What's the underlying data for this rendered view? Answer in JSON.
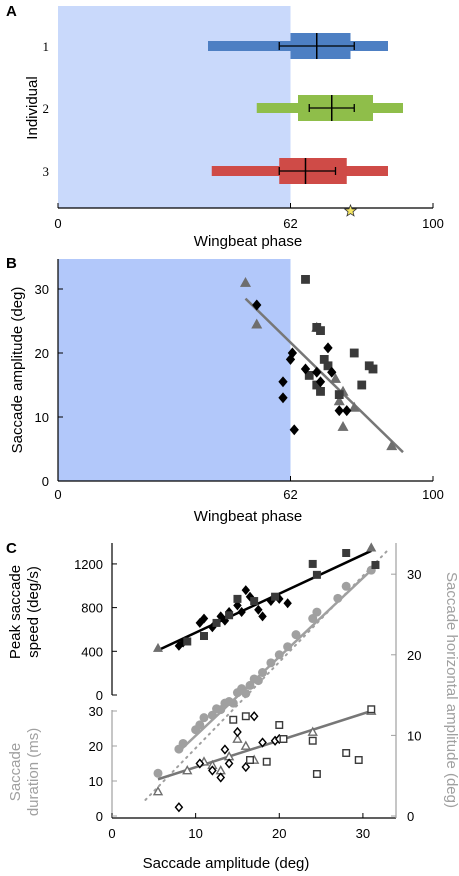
{
  "panels": {
    "a": "A",
    "b": "B",
    "c": "C"
  },
  "chart_data": [
    {
      "type": "box",
      "panel": "A",
      "ylabel": "Individual",
      "xlabel": "Wingbeat phase",
      "xlim": [
        0,
        100
      ],
      "xticks": [
        "0",
        "62",
        "100"
      ],
      "shaded_region": [
        0,
        62
      ],
      "shade_color": "#c9d9fb",
      "marker_star_x": 78,
      "star_color": "#f5e663",
      "individuals": [
        {
          "label": "1",
          "color": "#4d7fc3",
          "whisker_low": 40,
          "q1": 62,
          "q3": 78,
          "whisker_high": 88,
          "inner_low": 64,
          "inner_high": 76,
          "mean": 69,
          "err_low": 59,
          "err_high": 79
        },
        {
          "label": "2",
          "color": "#8fbe4a",
          "whisker_low": 53,
          "q1": 64,
          "q3": 84,
          "whisker_high": 92,
          "inner_low": 66,
          "inner_high": 81,
          "mean": 73,
          "err_low": 67,
          "err_high": 79
        },
        {
          "label": "3",
          "color": "#cf4b47",
          "whisker_low": 41,
          "q1": 59,
          "q3": 77,
          "whisker_high": 88,
          "inner_low": 62,
          "inner_high": 75,
          "mean": 66,
          "err_low": 59,
          "err_high": 74
        }
      ]
    },
    {
      "type": "scatter",
      "panel": "B",
      "xlabel": "Wingbeat phase",
      "ylabel": "Saccade amplitude (deg)",
      "xlim": [
        0,
        100
      ],
      "ylim": [
        0,
        35
      ],
      "xticks": [
        "0",
        "62",
        "100"
      ],
      "yticks": [
        "0",
        "10",
        "20",
        "30"
      ],
      "shaded_region": [
        0,
        62
      ],
      "shade_color": "#b2c8fa",
      "series": [
        {
          "marker": "triangle",
          "color": "#6e6e6e",
          "points": [
            [
              50,
              31
            ],
            [
              53,
              24.5
            ],
            [
              69,
              24
            ],
            [
              74,
              16
            ],
            [
              76,
              14
            ],
            [
              75,
              12.5
            ],
            [
              79,
              11.5
            ],
            [
              76,
              8.5
            ],
            [
              89,
              5.5
            ]
          ]
        },
        {
          "marker": "square",
          "color": "#3a3a3a",
          "points": [
            [
              66,
              31.5
            ],
            [
              69,
              24
            ],
            [
              70,
              23.5
            ],
            [
              72,
              18
            ],
            [
              67,
              16.5
            ],
            [
              69,
              15
            ],
            [
              70,
              14
            ],
            [
              71,
              19
            ],
            [
              79,
              20
            ],
            [
              81,
              15
            ],
            [
              83,
              18
            ],
            [
              84,
              17.5
            ],
            [
              75,
              13.5
            ]
          ]
        },
        {
          "marker": "diamond",
          "color": "#000000",
          "points": [
            [
              53,
              27.5
            ],
            [
              62,
              19
            ],
            [
              62.5,
              20
            ],
            [
              60,
              15.5
            ],
            [
              60,
              13
            ],
            [
              63,
              8
            ],
            [
              66,
              17.5
            ],
            [
              69,
              17
            ],
            [
              70,
              15.5
            ],
            [
              72,
              20.8
            ],
            [
              73,
              17
            ],
            [
              75,
              11
            ],
            [
              77,
              11
            ]
          ]
        }
      ],
      "fit_line": {
        "x": [
          50,
          92
        ],
        "y": [
          28.5,
          4.5
        ],
        "color": "#777777"
      }
    },
    {
      "type": "scatter",
      "panel": "C",
      "xlabel": "Saccade amplitude (deg)",
      "xlim": [
        0,
        33
      ],
      "xticks": [
        "0",
        "10",
        "20",
        "30"
      ],
      "top": {
        "ylabel_lines": [
          "Peak saccade",
          "speed (deg/s)"
        ],
        "ylim": [
          0,
          1300
        ],
        "yticks": [
          "0",
          "400",
          "800",
          "1200"
        ],
        "color": "#000000",
        "series": [
          {
            "marker": "triangle",
            "color": "#6e6e6e",
            "points": [
              [
                5.5,
                430
              ],
              [
                31,
                1350
              ]
            ]
          },
          {
            "marker": "diamond",
            "color": "#000000",
            "points": [
              [
                8,
                450
              ],
              [
                8.5,
                480
              ],
              [
                10.5,
                660
              ],
              [
                11,
                700
              ],
              [
                12,
                620
              ],
              [
                13,
                720
              ],
              [
                13.5,
                680
              ],
              [
                14,
                760
              ],
              [
                15,
                820
              ],
              [
                15.5,
                760
              ],
              [
                16,
                960
              ],
              [
                16.5,
                900
              ],
              [
                17.5,
                780
              ],
              [
                18,
                720
              ],
              [
                19,
                860
              ],
              [
                20,
                880
              ],
              [
                21,
                840
              ]
            ]
          },
          {
            "marker": "square",
            "color": "#3a3a3a",
            "points": [
              [
                9,
                490
              ],
              [
                11,
                540
              ],
              [
                12.5,
                660
              ],
              [
                14,
                730
              ],
              [
                15,
                880
              ],
              [
                17,
                860
              ],
              [
                19.5,
                900
              ],
              [
                24,
                1200
              ],
              [
                24.5,
                1100
              ],
              [
                28,
                1300
              ],
              [
                31.5,
                1190
              ]
            ]
          }
        ],
        "fit_line": {
          "x": [
            5.5,
            31
          ],
          "y": [
            410,
            1320
          ],
          "color": "#000000"
        }
      },
      "right": {
        "ylabel": "Saccade horizontal amplitude (deg)",
        "ylim": [
          0,
          33
        ],
        "yticks": [
          "0",
          "10",
          "20",
          "30"
        ],
        "color": "#a0a0a0",
        "points": [
          [
            5.5,
            5.3
          ],
          [
            8,
            8.3
          ],
          [
            8.5,
            9
          ],
          [
            10,
            10.7
          ],
          [
            10.5,
            11.3
          ],
          [
            11,
            12.2
          ],
          [
            12,
            12.5
          ],
          [
            12.5,
            13.3
          ],
          [
            13,
            13.2
          ],
          [
            13.5,
            14
          ],
          [
            14,
            14.2
          ],
          [
            14.5,
            14
          ],
          [
            15,
            15.3
          ],
          [
            15.5,
            15.8
          ],
          [
            16,
            15.2
          ],
          [
            16.5,
            16.2
          ],
          [
            17,
            17
          ],
          [
            17.5,
            16.8
          ],
          [
            18,
            17.8
          ],
          [
            19,
            19
          ],
          [
            20,
            20
          ],
          [
            21,
            21
          ],
          [
            22,
            22.5
          ],
          [
            24,
            24.5
          ],
          [
            24.5,
            25.3
          ],
          [
            27,
            27
          ],
          [
            28,
            28.5
          ],
          [
            31,
            30.5
          ]
        ],
        "fit_line": {
          "x": [
            8,
            31
          ],
          "y": [
            8,
            30.5
          ],
          "color": "#a0a0a0"
        },
        "unity_line": {
          "x": [
            4,
            33
          ],
          "y": [
            2,
            33
          ]
        }
      },
      "bottom": {
        "ylabel_lines": [
          "Saccade",
          "duration (ms)"
        ],
        "ylim": [
          0,
          30
        ],
        "yticks": [
          "0",
          "10",
          "20",
          "30"
        ],
        "color": "#a0a0a0",
        "series": [
          {
            "marker": "triangle-open",
            "color": "#6e6e6e",
            "points": [
              [
                5.5,
                7
              ],
              [
                9,
                13
              ],
              [
                11,
                15.5
              ],
              [
                12,
                14.5
              ],
              [
                13,
                13
              ],
              [
                14,
                17
              ],
              [
                15,
                22
              ],
              [
                16,
                20
              ],
              [
                17,
                16
              ],
              [
                24,
                24
              ],
              [
                31,
                30
              ]
            ]
          },
          {
            "marker": "diamond-open",
            "color": "#000000",
            "points": [
              [
                8,
                2.5
              ],
              [
                10.5,
                15
              ],
              [
                12,
                13
              ],
              [
                13,
                11
              ],
              [
                13.5,
                19
              ],
              [
                14,
                15
              ],
              [
                15,
                24
              ],
              [
                16,
                14
              ],
              [
                17,
                28.5
              ],
              [
                18,
                21
              ],
              [
                19.5,
                21.5
              ],
              [
                20,
                22
              ]
            ]
          },
          {
            "marker": "square-open",
            "color": "#3a3a3a",
            "points": [
              [
                14.5,
                27.5
              ],
              [
                16,
                28.5
              ],
              [
                16.5,
                16
              ],
              [
                18.5,
                15.5
              ],
              [
                20,
                26
              ],
              [
                20.5,
                22
              ],
              [
                24,
                21.5
              ],
              [
                24.5,
                12
              ],
              [
                28,
                18
              ],
              [
                29.5,
                16
              ],
              [
                31,
                30.5
              ]
            ]
          }
        ],
        "fit_line": {
          "x": [
            5.5,
            31
          ],
          "y": [
            10.5,
            30
          ],
          "color": "#777777"
        }
      }
    }
  ]
}
